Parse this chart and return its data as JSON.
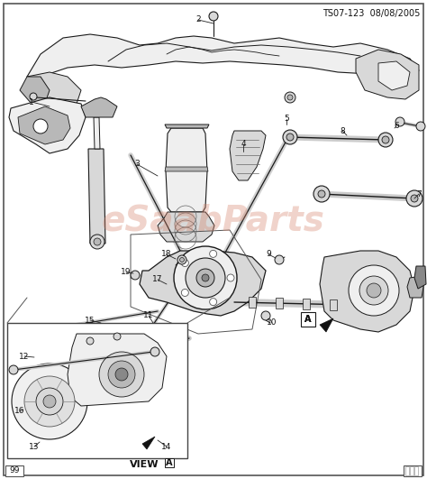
{
  "title": "TS07-123  08/08/2005",
  "view_label": "VIEW A",
  "page_number": "99",
  "bg": "#ffffff",
  "line_color": "#1a1a1a",
  "gray_fill": "#d8d8d8",
  "light_fill": "#efefef",
  "mid_fill": "#b8b8b8",
  "dark_fill": "#888888",
  "watermark_color": "#d4836a",
  "figsize": [
    4.74,
    5.31
  ],
  "dpi": 100
}
